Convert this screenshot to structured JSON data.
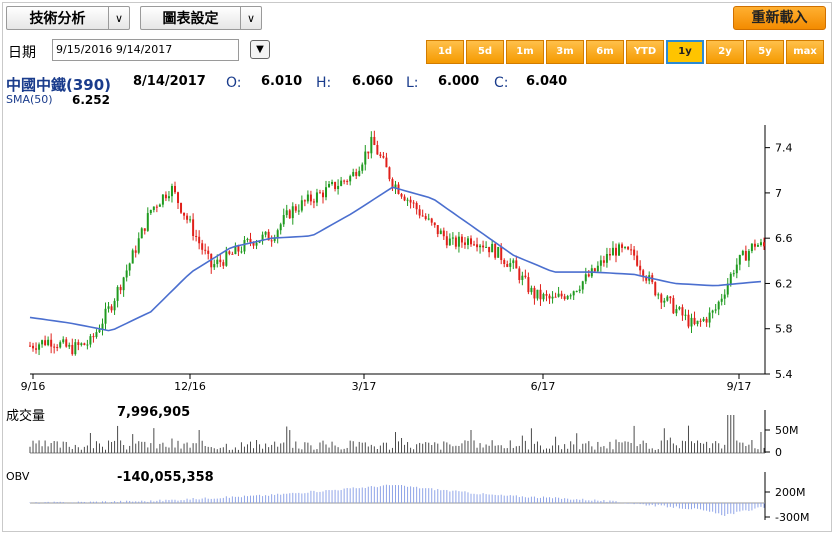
{
  "toolbar": {
    "analysis_label": "技術分析",
    "settings_label": "圖表設定",
    "reload_label": "重新載入"
  },
  "dates": {
    "label": "日期",
    "value": "9/15/2016  9/14/2017"
  },
  "ranges": [
    "1d",
    "5d",
    "1m",
    "3m",
    "6m",
    "YTD",
    "1y",
    "2y",
    "5y",
    "max"
  ],
  "active_range": "1y",
  "quote": {
    "name": "中國中鐵(390)",
    "date": "8/14/2017",
    "o_label": "O:",
    "o": "6.010",
    "h_label": "H:",
    "h": "6.060",
    "l_label": "L:",
    "l": "6.000",
    "c_label": "C:",
    "c": "6.040",
    "sma_label": "SMA(50)",
    "sma_value": "6.252"
  },
  "volume": {
    "label": "成交量",
    "value": "7,996,905",
    "ticks": [
      "50M",
      "0"
    ]
  },
  "obv": {
    "label": "OBV",
    "value": "-140,055,358",
    "ticks": [
      "200M",
      "-300M"
    ]
  },
  "colors": {
    "up": "#1f9a1f",
    "down": "#e0201a",
    "sma": "#4b6fcf",
    "volume": "#4a4a4a",
    "obv": "#8fa4e8"
  },
  "chart_data": {
    "type": "line",
    "y_ticks": [
      "7.4",
      "7",
      "6.6",
      "6.2",
      "5.8",
      "5.4"
    ],
    "ylim": [
      5.4,
      7.6
    ],
    "x_ticks": [
      "9/16",
      "12/16",
      "3/17",
      "6/17",
      "9/17"
    ],
    "xlabel": "",
    "ylabel": "",
    "series": [
      {
        "name": "",
        "role": "price",
        "x": [
          0,
          10,
          20,
          30,
          40,
          50,
          60,
          70,
          80,
          90,
          100,
          110,
          120,
          130,
          140,
          150,
          160,
          170,
          180,
          190,
          200,
          210,
          220,
          230,
          240,
          250,
          260,
          270,
          280,
          290,
          300,
          310,
          320,
          330,
          340,
          350,
          360,
          365
        ],
        "y": [
          5.65,
          5.7,
          5.62,
          5.68,
          6.0,
          6.4,
          6.85,
          7.05,
          6.7,
          6.35,
          6.45,
          6.58,
          6.62,
          6.85,
          6.95,
          7.05,
          7.15,
          7.45,
          7.1,
          6.9,
          6.7,
          6.55,
          6.6,
          6.5,
          6.35,
          6.1,
          6.05,
          6.15,
          6.3,
          6.5,
          6.45,
          6.15,
          5.98,
          5.82,
          5.95,
          6.35,
          6.55,
          6.52
        ]
      },
      {
        "name": "SMA(50)",
        "role": "sma",
        "x": [
          0,
          20,
          40,
          60,
          80,
          100,
          120,
          140,
          160,
          180,
          200,
          220,
          240,
          260,
          280,
          300,
          320,
          340,
          365
        ],
        "y": [
          5.9,
          5.85,
          5.78,
          5.95,
          6.3,
          6.52,
          6.6,
          6.62,
          6.82,
          7.05,
          6.95,
          6.7,
          6.45,
          6.3,
          6.3,
          6.28,
          6.2,
          6.18,
          6.22
        ]
      }
    ]
  }
}
